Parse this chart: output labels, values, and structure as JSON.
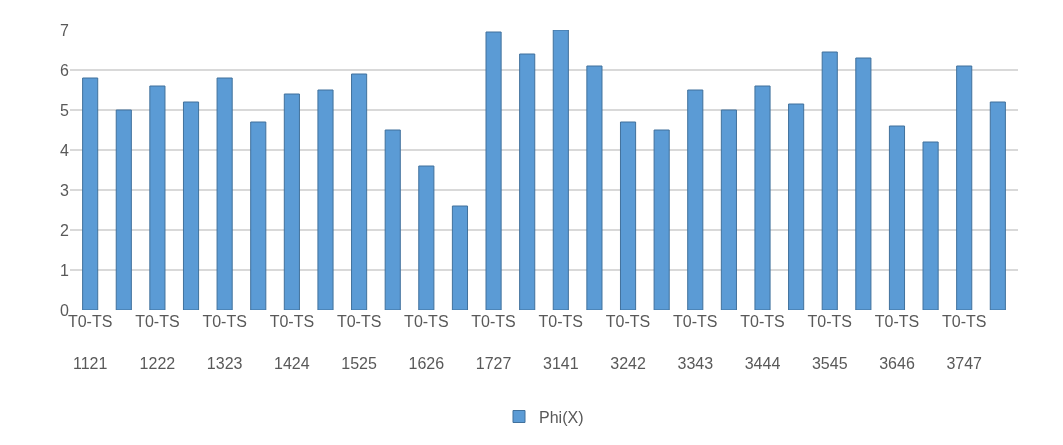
{
  "chart_data": {
    "type": "bar",
    "categories": [
      "T0-TS 1121",
      null,
      "T0-TS 1222",
      null,
      "T0-TS 1323",
      null,
      "T0-TS 1424",
      null,
      "T0-TS 1525",
      null,
      "T0-TS 1626",
      null,
      "T0-TS 1727",
      null,
      "T0-TS 3141",
      null,
      "T0-TS 3242",
      null,
      "T0-TS 3343",
      null,
      "T0-TS 3444",
      null,
      "T0-TS 3545",
      null,
      "T0-TS 3646",
      null,
      "T0-TS 3747",
      null
    ],
    "series": [
      {
        "name": "Phi(X)",
        "color": "#5b9bd5",
        "values": [
          5.8,
          5.0,
          5.6,
          5.2,
          5.8,
          4.7,
          5.4,
          5.5,
          5.9,
          4.5,
          3.6,
          2.6,
          6.95,
          6.4,
          7.0,
          6.1,
          4.7,
          4.5,
          5.5,
          5.0,
          5.6,
          5.15,
          6.45,
          6.3,
          4.6,
          4.2,
          6.1,
          5.2
        ]
      }
    ],
    "ylim": [
      0,
      7
    ],
    "yticks": [
      0,
      1,
      2,
      3,
      4,
      5,
      6,
      7
    ],
    "grid": "y",
    "legend": "bottom"
  }
}
